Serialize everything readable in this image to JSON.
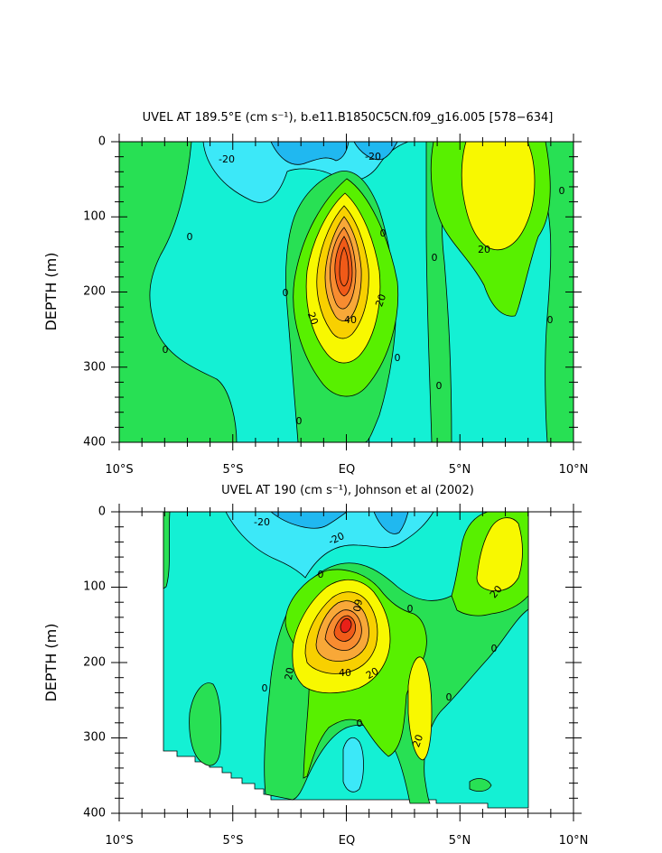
{
  "colors": {
    "c_neg30": "#20b8f0",
    "c_neg20": "#3ce8f8",
    "c_neg10": "#14f0d4",
    "c_0": "#28e054",
    "c_10": "#58f000",
    "c_20": "#f8f800",
    "c_30": "#f8d000",
    "c_40": "#f8a838",
    "c_50": "#f88c30",
    "c_60": "#f05a18",
    "c_70": "#e82018"
  },
  "chart_data": [
    {
      "type": "contour",
      "title": "UVEL AT 189.5°E (cm s⁻¹), b.e11.B1850C5CN.f09_g16.005 [578−634]",
      "ylabel": "DEPTH (m)",
      "x_ticks": [
        "10°S",
        "5°S",
        "EQ",
        "5°N",
        "10°N"
      ],
      "y_ticks": [
        "0",
        "100",
        "200",
        "300",
        "400"
      ],
      "xlim": [
        -10,
        10
      ],
      "ylim": [
        400,
        0
      ],
      "contour_interval": 10,
      "features": [
        {
          "name": "Equatorial Undercurrent core",
          "lat": 0,
          "depth": 170,
          "value": 70
        },
        {
          "name": "North off-equatorial eastward jet",
          "lat": 6.5,
          "depth": 70,
          "value": 30
        },
        {
          "name": "Near-surface westward flow",
          "lat": -1,
          "depth": 15,
          "value": -30
        },
        {
          "name": "Near-surface westward flow",
          "lat": 2,
          "depth": 15,
          "value": -30
        }
      ],
      "contour_labels": [
        {
          "text": "-20",
          "lat": -5.2,
          "depth": 35
        },
        {
          "text": "-20",
          "lat": 1.6,
          "depth": 30
        },
        {
          "text": "0",
          "lat": -7.0,
          "depth": 130
        },
        {
          "text": "0",
          "lat": 1.5,
          "depth": 125
        },
        {
          "text": "0",
          "lat": 3.9,
          "depth": 160
        },
        {
          "text": "0",
          "lat": 9.6,
          "depth": 70
        },
        {
          "text": "0",
          "lat": -2.4,
          "depth": 210
        },
        {
          "text": "0",
          "lat": 9.0,
          "depth": 240
        },
        {
          "text": "0",
          "lat": -7.8,
          "depth": 280
        },
        {
          "text": "0",
          "lat": 2.2,
          "depth": 290
        },
        {
          "text": "0",
          "lat": 4.1,
          "depth": 325
        },
        {
          "text": "0",
          "lat": -2.0,
          "depth": 370
        },
        {
          "text": "20",
          "lat": -1.6,
          "depth": 235
        },
        {
          "text": "20",
          "lat": 1.6,
          "depth": 210
        },
        {
          "text": "40",
          "lat": 0.2,
          "depth": 240
        },
        {
          "text": "20",
          "lat": 6.0,
          "depth": 145
        }
      ]
    },
    {
      "type": "contour",
      "title": "UVEL AT 190 (cm s⁻¹), Johnson et al (2002)",
      "ylabel": "DEPTH (m)",
      "x_ticks": [
        "10°S",
        "5°S",
        "EQ",
        "5°N",
        "10°N"
      ],
      "y_ticks": [
        "0",
        "100",
        "200",
        "300",
        "400"
      ],
      "xlim": [
        -10,
        10
      ],
      "ylim": [
        400,
        0
      ],
      "data_extent_lat": [
        -8,
        8
      ],
      "contour_interval": 10,
      "features": [
        {
          "name": "Equatorial Undercurrent core",
          "lat": 0,
          "depth": 150,
          "value": 80
        },
        {
          "name": "Secondary eastward jet",
          "lat": 3.2,
          "depth": 255,
          "value": 20
        },
        {
          "name": "North off-equatorial eastward jet",
          "lat": 6.2,
          "depth": 90,
          "value": 20
        },
        {
          "name": "Near-surface westward flow",
          "lat": -2,
          "depth": 20,
          "value": -30
        }
      ],
      "contour_labels": [
        {
          "text": "-20",
          "lat": -3.9,
          "depth": 18
        },
        {
          "text": "-20",
          "lat": -0.3,
          "depth": 38
        },
        {
          "text": "0",
          "lat": -1.1,
          "depth": 88
        },
        {
          "text": "0",
          "lat": 2.8,
          "depth": 133
        },
        {
          "text": "0",
          "lat": 6.5,
          "depth": 182
        },
        {
          "text": "0",
          "lat": 4.5,
          "depth": 250
        },
        {
          "text": "0",
          "lat": 0.6,
          "depth": 285
        },
        {
          "text": "0",
          "lat": -3.6,
          "depth": 237
        },
        {
          "text": "20",
          "lat": -2.4,
          "depth": 218
        },
        {
          "text": "40",
          "lat": -0.1,
          "depth": 215
        },
        {
          "text": "20",
          "lat": 1.3,
          "depth": 218
        },
        {
          "text": "60",
          "lat": 0.2,
          "depth": 123
        },
        {
          "text": "20",
          "lat": 3.2,
          "depth": 310
        },
        {
          "text": "20",
          "lat": 6.6,
          "depth": 112
        }
      ]
    }
  ]
}
